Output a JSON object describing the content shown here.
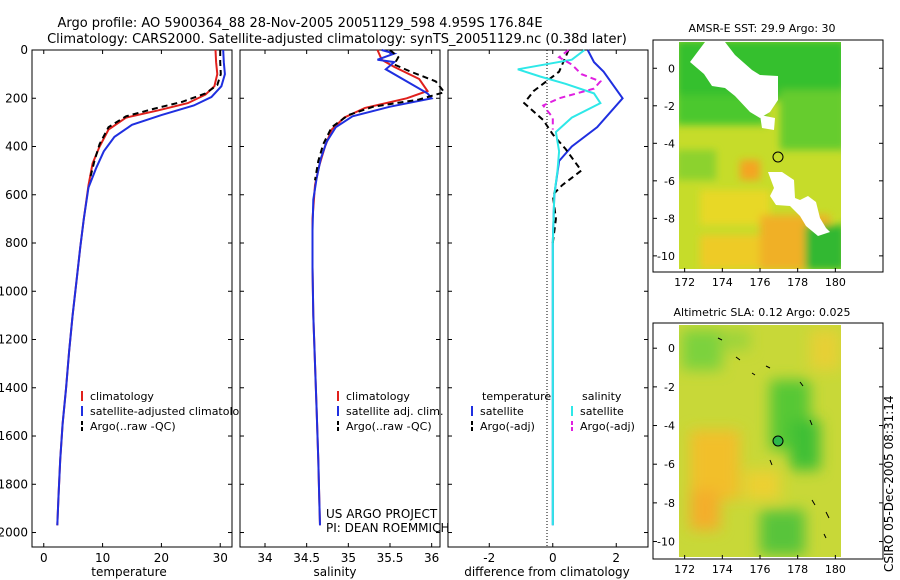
{
  "header": {
    "title_line1": "Argo profile: AO 5900364_88 28-Nov-2005 20051129_598 4.959S 176.84E",
    "title_line2": "Climatology: CARS2000. Satellite-adjusted climatology: synTS_20051129.nc (0.38d later)"
  },
  "side_label": "CSIRO 05-Dec-2005 08:31:14",
  "credit": {
    "line1": "US ARGO PROJECT",
    "line2": "PI: DEAN ROEMMICH"
  },
  "colors": {
    "red": "#e0201c",
    "blue": "#1f2fe0",
    "black": "#000000",
    "cyan": "#2ee8e8",
    "magenta": "#e020e0"
  },
  "chart_data": [
    {
      "id": "temperature",
      "type": "line",
      "xlabel": "temperature",
      "xlim": [
        -2,
        32
      ],
      "ylim": [
        0,
        2060
      ],
      "y_inverted": true,
      "xticks": [
        0,
        10,
        20,
        30
      ],
      "yticks": [
        0,
        200,
        400,
        600,
        800,
        1000,
        1200,
        1400,
        1600,
        1800,
        2000
      ],
      "series": [
        {
          "name": "climatology",
          "color": "red",
          "dash": false,
          "points": [
            [
              29.2,
              0
            ],
            [
              29.3,
              50
            ],
            [
              29.5,
              100
            ],
            [
              29.0,
              150
            ],
            [
              27.5,
              185
            ],
            [
              24.5,
              220
            ],
            [
              19.5,
              250
            ],
            [
              14.0,
              280
            ],
            [
              11.0,
              330
            ],
            [
              9.5,
              400
            ],
            [
              8.3,
              470
            ],
            [
              7.6,
              560
            ],
            [
              6.8,
              700
            ],
            [
              6.2,
              820
            ],
            [
              5.6,
              950
            ],
            [
              4.9,
              1100
            ],
            [
              4.3,
              1250
            ],
            [
              3.8,
              1400
            ],
            [
              3.2,
              1550
            ],
            [
              2.8,
              1700
            ],
            [
              2.5,
              1850
            ],
            [
              2.3,
              1970
            ]
          ]
        },
        {
          "name": "satellite-adjusted climatology",
          "color": "blue",
          "dash": false,
          "points": [
            [
              30.5,
              0
            ],
            [
              30.6,
              50
            ],
            [
              30.8,
              100
            ],
            [
              30.2,
              150
            ],
            [
              28.5,
              195
            ],
            [
              25.5,
              230
            ],
            [
              20.0,
              270
            ],
            [
              15.0,
              310
            ],
            [
              12.0,
              360
            ],
            [
              10.2,
              420
            ],
            [
              8.9,
              490
            ],
            [
              7.6,
              570
            ],
            [
              6.8,
              700
            ],
            [
              6.2,
              820
            ],
            [
              5.6,
              950
            ],
            [
              4.9,
              1100
            ],
            [
              4.3,
              1250
            ],
            [
              3.8,
              1400
            ],
            [
              3.2,
              1550
            ],
            [
              2.8,
              1700
            ],
            [
              2.5,
              1850
            ],
            [
              2.3,
              1970
            ]
          ]
        },
        {
          "name": "Argo(..raw -QC)",
          "color": "black",
          "dash": true,
          "points": [
            [
              30.0,
              0
            ],
            [
              30.0,
              50
            ],
            [
              30.1,
              100
            ],
            [
              29.5,
              145
            ],
            [
              27.5,
              180
            ],
            [
              23.5,
              215
            ],
            [
              18.5,
              245
            ],
            [
              14.0,
              275
            ],
            [
              11.0,
              320
            ],
            [
              9.5,
              390
            ],
            [
              8.6,
              460
            ],
            [
              7.8,
              540
            ]
          ]
        }
      ],
      "legend": {
        "position": "lower-right",
        "entries": [
          {
            "label": "climatology",
            "color": "red",
            "dash": false
          },
          {
            "label": "satellite-adjusted climatology",
            "color": "blue",
            "dash": false
          },
          {
            "label": "Argo(..raw -QC)",
            "color": "black",
            "dash": true
          }
        ]
      }
    },
    {
      "id": "salinity",
      "type": "line",
      "xlabel": "salinity",
      "xlim": [
        33.7,
        36.1
      ],
      "ylim": [
        0,
        2060
      ],
      "y_inverted": true,
      "xticks": [
        34,
        34.5,
        35,
        35.5,
        36
      ],
      "series": [
        {
          "name": "climatology",
          "color": "red",
          "dash": false,
          "points": [
            [
              35.35,
              0
            ],
            [
              35.4,
              40
            ],
            [
              35.55,
              70
            ],
            [
              35.85,
              120
            ],
            [
              35.95,
              170
            ],
            [
              35.7,
              200
            ],
            [
              35.2,
              240
            ],
            [
              34.95,
              280
            ],
            [
              34.8,
              330
            ],
            [
              34.72,
              400
            ],
            [
              34.65,
              480
            ],
            [
              34.6,
              560
            ],
            [
              34.57,
              700
            ],
            [
              34.57,
              900
            ],
            [
              34.58,
              1100
            ],
            [
              34.6,
              1300
            ],
            [
              34.62,
              1500
            ],
            [
              34.64,
              1700
            ],
            [
              34.65,
              1850
            ],
            [
              34.66,
              1970
            ]
          ]
        },
        {
          "name": "satellite adj. clim.",
          "color": "blue",
          "dash": false,
          "points": [
            [
              35.4,
              0
            ],
            [
              35.55,
              15
            ],
            [
              35.35,
              40
            ],
            [
              35.55,
              50
            ],
            [
              35.45,
              80
            ],
            [
              35.95,
              180
            ],
            [
              36.0,
              200
            ],
            [
              35.5,
              235
            ],
            [
              35.05,
              275
            ],
            [
              34.85,
              320
            ],
            [
              34.74,
              380
            ],
            [
              34.67,
              450
            ],
            [
              34.62,
              530
            ],
            [
              34.58,
              620
            ],
            [
              34.57,
              750
            ],
            [
              34.57,
              900
            ],
            [
              34.58,
              1100
            ],
            [
              34.6,
              1300
            ],
            [
              34.62,
              1500
            ],
            [
              34.64,
              1700
            ],
            [
              34.65,
              1850
            ],
            [
              34.66,
              1970
            ]
          ]
        },
        {
          "name": "Argo(..raw -QC)",
          "color": "black",
          "dash": true,
          "points": [
            [
              35.5,
              0
            ],
            [
              35.6,
              30
            ],
            [
              35.55,
              60
            ],
            [
              35.75,
              90
            ],
            [
              36.05,
              130
            ],
            [
              36.15,
              175
            ],
            [
              35.85,
              205
            ],
            [
              35.3,
              235
            ],
            [
              35.0,
              270
            ],
            [
              34.8,
              320
            ],
            [
              34.7,
              390
            ],
            [
              34.64,
              460
            ],
            [
              34.6,
              540
            ]
          ]
        }
      ],
      "legend": {
        "position": "lower-right",
        "entries": [
          {
            "label": "climatology",
            "color": "red",
            "dash": false
          },
          {
            "label": "satellite adj. clim.",
            "color": "blue",
            "dash": false
          },
          {
            "label": "Argo(..raw -QC)",
            "color": "black",
            "dash": true
          }
        ]
      }
    },
    {
      "id": "difference",
      "type": "line",
      "xlabel": "difference from climatology",
      "xlim": [
        -3.3,
        3.0
      ],
      "ylim": [
        0,
        2060
      ],
      "y_inverted": true,
      "xticks": [
        -2,
        0,
        2
      ],
      "series": [
        {
          "name": "temperature satellite",
          "color": "blue",
          "dash": false,
          "points": [
            [
              1.1,
              0
            ],
            [
              1.3,
              50
            ],
            [
              1.6,
              90
            ],
            [
              2.2,
              200
            ],
            [
              1.4,
              320
            ],
            [
              0.6,
              400
            ],
            [
              0.2,
              460
            ],
            [
              0.05,
              600
            ],
            [
              0.0,
              800
            ],
            [
              0.0,
              1000
            ],
            [
              0.0,
              1970
            ]
          ]
        },
        {
          "name": "temperature Argo(-adj)",
          "color": "black",
          "dash": true,
          "points": [
            [
              0.5,
              0
            ],
            [
              0.2,
              90
            ],
            [
              -0.6,
              170
            ],
            [
              -0.9,
              220
            ],
            [
              -0.3,
              290
            ],
            [
              0.0,
              350
            ],
            [
              0.4,
              410
            ],
            [
              0.9,
              500
            ],
            [
              0.3,
              560
            ],
            [
              0.0,
              600
            ],
            [
              0.1,
              700
            ],
            [
              0.0,
              800
            ]
          ]
        },
        {
          "name": "salinity satellite",
          "color": "cyan",
          "dash": false,
          "points": [
            [
              1.0,
              0
            ],
            [
              0.6,
              40
            ],
            [
              -1.1,
              80
            ],
            [
              -0.4,
              110
            ],
            [
              0.4,
              140
            ],
            [
              1.3,
              180
            ],
            [
              1.5,
              220
            ],
            [
              0.6,
              280
            ],
            [
              0.1,
              340
            ],
            [
              0.2,
              420
            ],
            [
              0.15,
              500
            ],
            [
              0.05,
              600
            ],
            [
              0.0,
              800
            ],
            [
              0.0,
              1970
            ]
          ]
        },
        {
          "name": "salinity Argo(-adj)",
          "color": "magenta",
          "dash": true,
          "points": [
            [
              0.5,
              0
            ],
            [
              0.2,
              30
            ],
            [
              0.6,
              60
            ],
            [
              0.9,
              100
            ],
            [
              1.5,
              130
            ],
            [
              1.3,
              160
            ],
            [
              0.2,
              200
            ],
            [
              -0.3,
              230
            ],
            [
              0.0,
              280
            ],
            [
              0.0,
              330
            ]
          ]
        }
      ],
      "legend": {
        "position": "lower",
        "headers": [
          "temperature",
          "salinity"
        ],
        "entries": [
          {
            "label": "satellite",
            "color": "blue",
            "dash": false,
            "column": 0
          },
          {
            "label": "Argo(-adj)",
            "color": "black",
            "dash": true,
            "column": 0
          },
          {
            "label": "satellite",
            "color": "cyan",
            "dash": false,
            "column": 1
          },
          {
            "label": "Argo(-adj)",
            "color": "magenta",
            "dash": true,
            "column": 1
          }
        ]
      }
    },
    {
      "id": "sst_map",
      "type": "heatmap",
      "title": "AMSR-E SST: 29.9 Argo: 30",
      "xlim": [
        171.7,
        180.3
      ],
      "ylim": [
        -10.7,
        1.4
      ],
      "xticks": [
        172,
        174,
        176,
        178,
        180
      ],
      "yticks": [
        0,
        -2,
        -4,
        -6,
        -8,
        -10
      ],
      "marker": {
        "lon": 176.84,
        "lat": -4.959
      }
    },
    {
      "id": "sla_map",
      "type": "heatmap",
      "title": "Altimetric SLA: 0.12 Argo: 0.025",
      "xlim": [
        171.7,
        180.3
      ],
      "ylim": [
        -10.8,
        1.2
      ],
      "xticks": [
        172,
        174,
        176,
        178,
        180
      ],
      "yticks": [
        0,
        -2,
        -4,
        -6,
        -8,
        -10
      ],
      "marker": {
        "lon": 176.84,
        "lat": -4.959
      }
    }
  ]
}
